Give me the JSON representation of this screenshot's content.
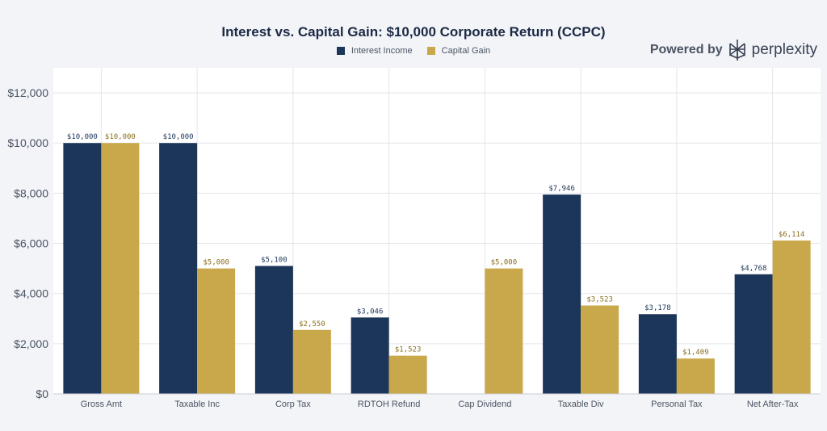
{
  "brand": {
    "powered_by": "Powered by",
    "name": "perplexity"
  },
  "colors": {
    "interest": "#1c3659",
    "capital": "#c8a84b",
    "grid": "#e3e5ea",
    "plot_bg": "#ffffff"
  },
  "icons": {
    "brand_logo": "perplexity-logo-icon"
  },
  "chart_data": {
    "type": "bar",
    "title": "Interest vs. Capital Gain: $10,000 Corporate Return (CCPC)",
    "xlabel": "",
    "ylabel": "",
    "ylim": [
      0,
      13000
    ],
    "yticks": [
      0,
      2000,
      4000,
      6000,
      8000,
      10000,
      12000
    ],
    "ytick_labels": [
      "$0",
      "$2,000",
      "$4,000",
      "$6,000",
      "$8,000",
      "$10,000",
      "$12,000"
    ],
    "grid": true,
    "legend_position": "top-center",
    "categories": [
      "Gross Amt",
      "Taxable Inc",
      "Corp Tax",
      "RDTOH Refund",
      "Cap Dividend",
      "Taxable Div",
      "Personal Tax",
      "Net After-Tax"
    ],
    "series": [
      {
        "name": "Interest Income",
        "values": [
          10000,
          10000,
          5100,
          3046,
          null,
          7946,
          3178,
          4768
        ],
        "labels": [
          "$10,000",
          "$10,000",
          "$5,100",
          "$3,046",
          "",
          "$7,946",
          "$3,178",
          "$4,768"
        ]
      },
      {
        "name": "Capital Gain",
        "values": [
          10000,
          5000,
          2550,
          1523,
          5000,
          3523,
          1409,
          6114
        ],
        "labels": [
          "$10,000",
          "$5,000",
          "$2,550",
          "$1,523",
          "$5,000",
          "$3,523",
          "$1,409",
          "$6,114"
        ]
      }
    ]
  }
}
